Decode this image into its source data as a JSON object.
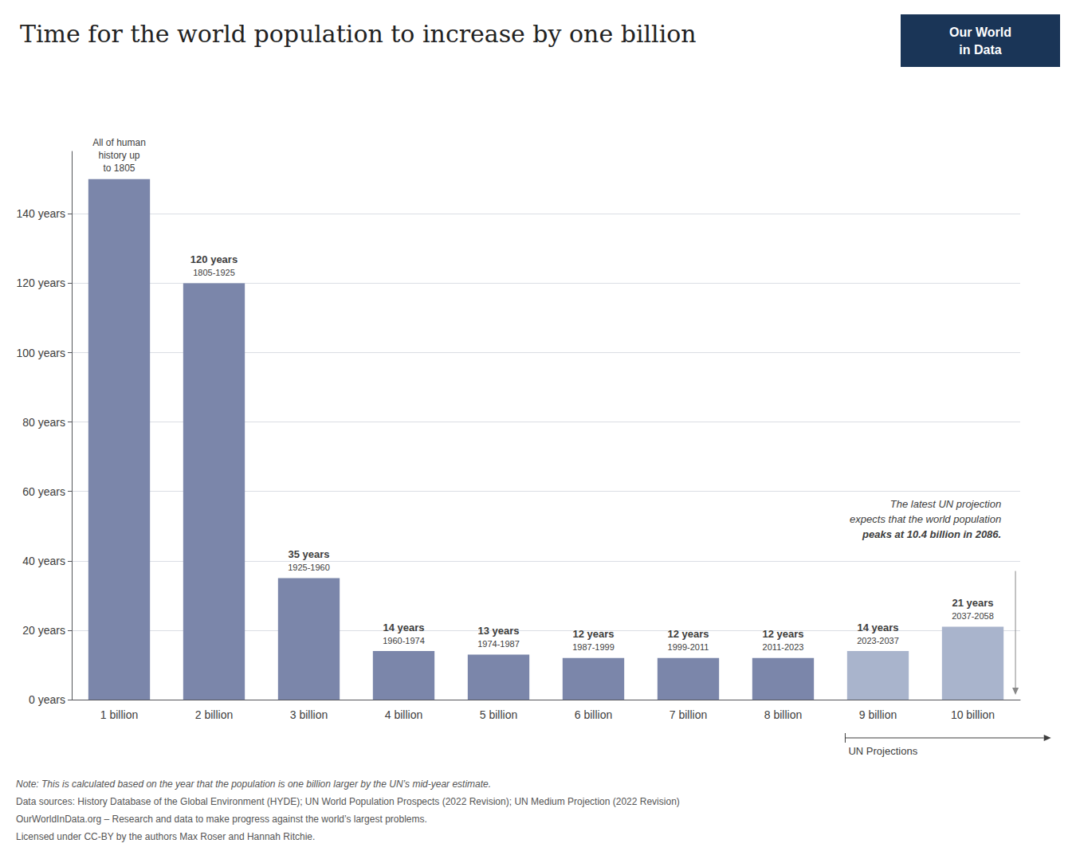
{
  "chart_data": {
    "type": "bar",
    "title": "Time for the world population to increase by one billion",
    "categories": [
      "1 billion",
      "2 billion",
      "3 billion",
      "4 billion",
      "5 billion",
      "6 billion",
      "7 billion",
      "8 billion",
      "9 billion",
      "10 billion"
    ],
    "values": [
      150,
      120,
      35,
      14,
      13,
      12,
      12,
      12,
      14,
      21
    ],
    "value_labels": [
      null,
      "120 years",
      "35 years",
      "14 years",
      "13 years",
      "12 years",
      "12 years",
      "12 years",
      "14 years",
      "21 years"
    ],
    "data_labels": true,
    "period_labels": [
      "All of human\nhistory up\nto 1805",
      "1805-1925",
      "1925-1960",
      "1960-1974",
      "1974-1987",
      "1987-1999",
      "1999-2011",
      "2011-2023",
      "2023-2037",
      "2037-2058"
    ],
    "colors": [
      "#7b86aa",
      "#7b86aa",
      "#7b86aa",
      "#7b86aa",
      "#7b86aa",
      "#7b86aa",
      "#7b86aa",
      "#7b86aa",
      "#a9b4cc",
      "#a9b4cc"
    ],
    "ylim": [
      0,
      158
    ],
    "yticks": [
      {
        "value": 0,
        "label": "0 years"
      },
      {
        "value": 20,
        "label": "20 years"
      },
      {
        "value": 40,
        "label": "40 years"
      },
      {
        "value": 60,
        "label": "60 years"
      },
      {
        "value": 80,
        "label": "80 years"
      },
      {
        "value": 100,
        "label": "100 years"
      },
      {
        "value": 120,
        "label": "120 years"
      },
      {
        "value": 140,
        "label": "140 years"
      }
    ],
    "grid": true,
    "annotations": [
      "The latest UN projection",
      "expects that the world population",
      "peaks at 10.4 billion in 2086."
    ],
    "projection": {
      "label": "UN Projections",
      "categories": [
        "9 billion",
        "10 billion"
      ]
    },
    "logo": {
      "text": [
        "Our World",
        "in Data"
      ],
      "color": "#1a3557"
    },
    "footer": [
      "Note: This is calculated based on the year that the population is one billion larger by the UN’s mid-year estimate.",
      "Data sources: History Database of the Global Environment (HYDE); UN World Population Prospects (2022 Revision); UN Medium Projection (2022 Revision)",
      "OurWorldInData.org – Research and data to make progress against the world’s largest problems.",
      "Licensed under CC-BY by the authors Max Roser and Hannah Ritchie."
    ]
  }
}
